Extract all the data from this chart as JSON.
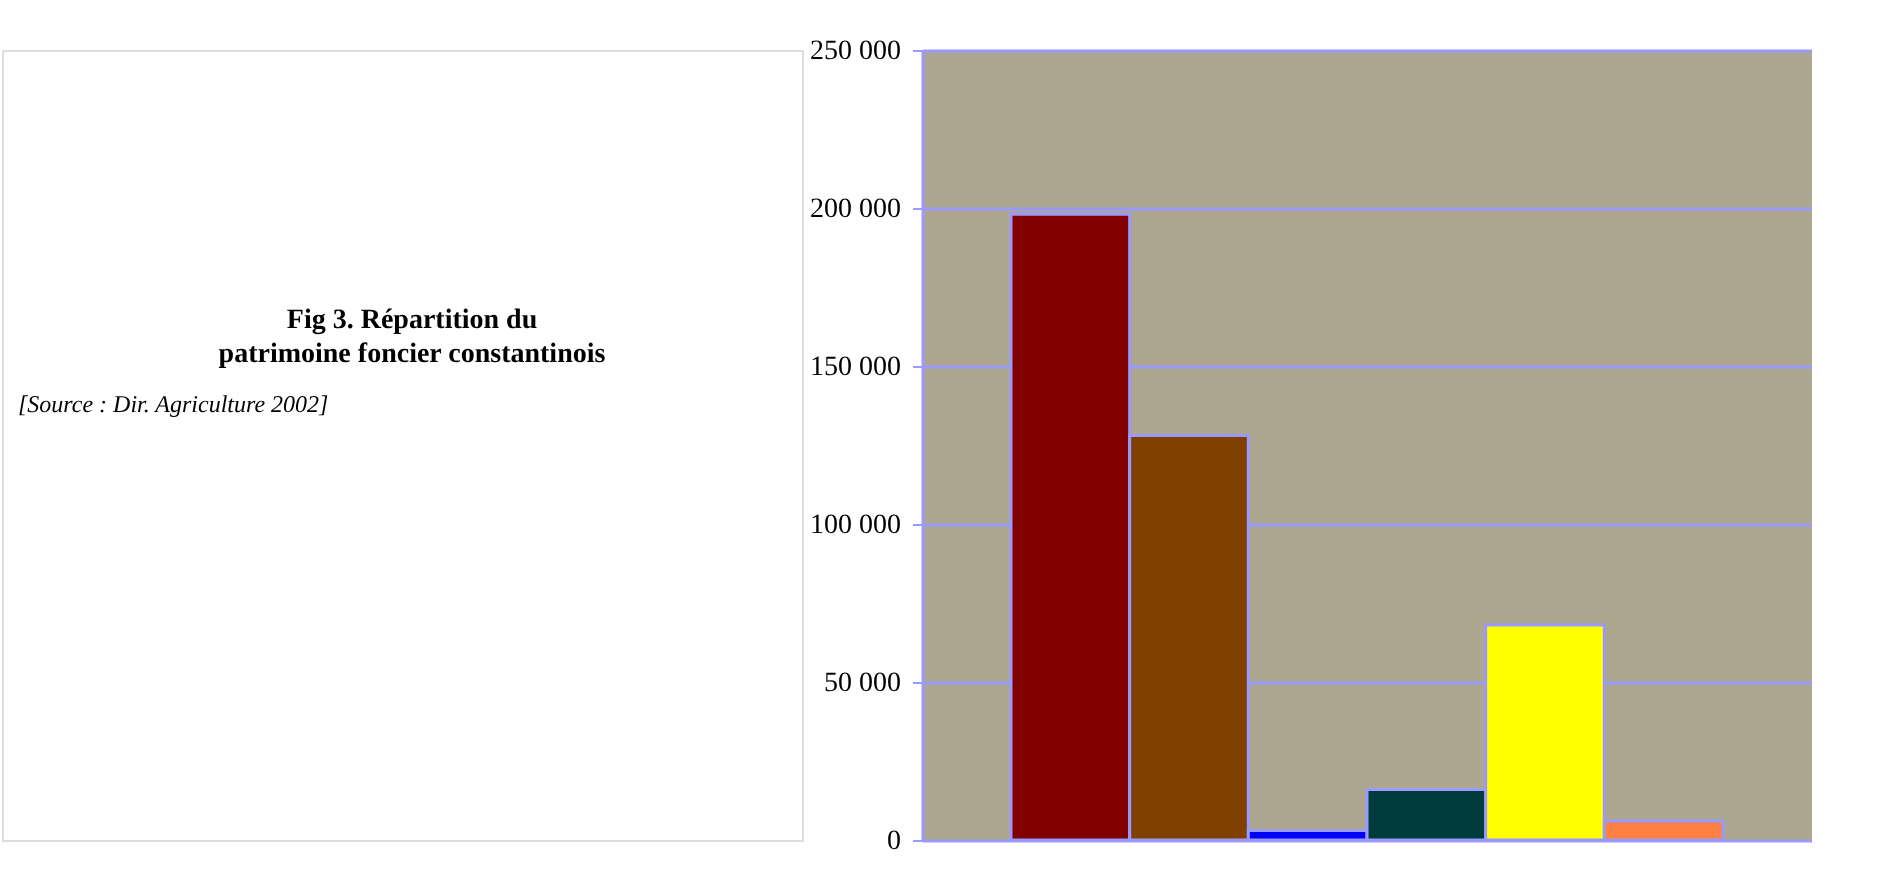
{
  "chart_data": {
    "type": "bar",
    "title": "Fig 3.  Répartition du patrimoine foncier constantinois",
    "annotations": [
      "[Source : Dir. Agriculture 2002]"
    ],
    "categories": [
      null,
      null,
      null,
      null,
      null,
      null
    ],
    "values": [
      198000,
      128000,
      3000,
      16000,
      68000,
      6000
    ],
    "colors": [
      "#800000",
      "#804000",
      "#0000ff",
      "#003c3c",
      "#ffff00",
      "#ff8040"
    ],
    "ylim": [
      0,
      250000
    ],
    "yticks": [
      {
        "value": 0,
        "label": "0"
      },
      {
        "value": 50000,
        "label": "50 000"
      },
      {
        "value": 100000,
        "label": "100 000"
      },
      {
        "value": 150000,
        "label": "150 000"
      },
      {
        "value": 200000,
        "label": "200 000"
      },
      {
        "value": 250000,
        "label": "250 000"
      }
    ],
    "grid": "y",
    "tick_labels": "y",
    "legend": false
  }
}
